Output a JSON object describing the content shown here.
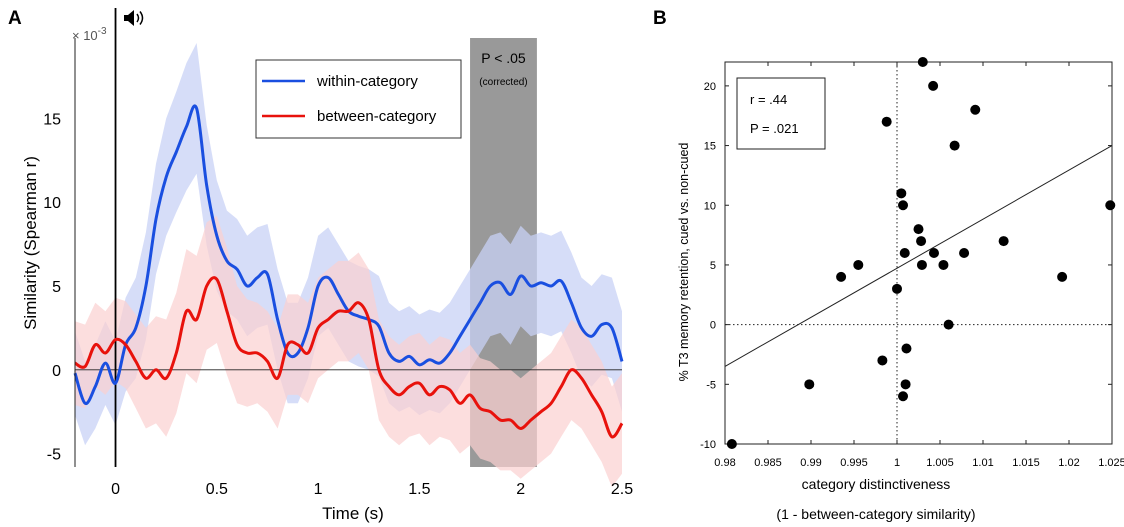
{
  "panel_a": {
    "panel_label": "A",
    "exponent_label": "× 10",
    "exponent_power": "-3",
    "sound_icon": "speaker-icon",
    "significance_label": "P < .05",
    "significance_sublabel": "(corrected)",
    "significance_window": [
      1.75,
      2.08
    ]
  },
  "panel_b": {
    "panel_label": "B",
    "stat_r": "r = .44",
    "stat_p": "P = .021",
    "xlabel_line2": "(1 - between-category similarity)"
  },
  "chart_data": [
    {
      "type": "line",
      "xlabel": "Time (s)",
      "ylabel": "Similarity (Spearman r)",
      "xlim": [
        -0.2,
        2.5
      ],
      "ylim": [
        -5.8,
        19.8
      ],
      "xticks": [
        0,
        0.5,
        1,
        1.5,
        2,
        2.5
      ],
      "xtick_labels": [
        "0",
        "0.5",
        "1",
        "1.5",
        "2",
        "2.5"
      ],
      "yticks": [
        -5,
        0,
        5,
        10,
        15
      ],
      "ytick_labels": [
        "-5",
        "0",
        "5",
        "10",
        "15"
      ],
      "legend_position": "top-right",
      "x": [
        -0.2,
        -0.15,
        -0.1,
        -0.05,
        0,
        0.05,
        0.1,
        0.15,
        0.2,
        0.25,
        0.3,
        0.35,
        0.4,
        0.45,
        0.5,
        0.55,
        0.6,
        0.65,
        0.7,
        0.75,
        0.8,
        0.85,
        0.9,
        0.95,
        1,
        1.05,
        1.1,
        1.15,
        1.2,
        1.25,
        1.3,
        1.35,
        1.4,
        1.45,
        1.5,
        1.55,
        1.6,
        1.65,
        1.7,
        1.75,
        1.8,
        1.85,
        1.9,
        1.95,
        2,
        2.05,
        2.1,
        2.15,
        2.2,
        2.25,
        2.3,
        2.35,
        2.4,
        2.45,
        2.5
      ],
      "series": [
        {
          "name": "within-category",
          "color": "#1a4fe0",
          "band_color": "#c8d2f5",
          "values": [
            -0.2,
            -2.0,
            -1.0,
            0.4,
            -0.8,
            1.5,
            2.5,
            5.0,
            9.0,
            11.5,
            13.0,
            14.5,
            15.6,
            11.0,
            8.0,
            6.5,
            6.0,
            5.0,
            5.5,
            5.7,
            3.0,
            1.0,
            1.0,
            2.5,
            5.0,
            5.5,
            4.5,
            3.5,
            3.2,
            3.0,
            2.6,
            1.0,
            0.5,
            0.8,
            0.3,
            0.6,
            0.4,
            1.0,
            2.0,
            3.0,
            4.0,
            5.0,
            5.2,
            4.5,
            5.6,
            5.0,
            5.2,
            5.0,
            5.3,
            4.0,
            2.5,
            2.0,
            2.7,
            2.5,
            0.5
          ],
          "band_halfwidth": [
            2.5,
            2.5,
            2.5,
            2.5,
            2.5,
            2.8,
            3.0,
            3.2,
            3.3,
            3.5,
            3.6,
            3.8,
            3.9,
            3.6,
            3.3,
            3.0,
            3.0,
            3.0,
            3.0,
            3.0,
            3.0,
            3.0,
            3.0,
            3.0,
            3.0,
            3.0,
            3.0,
            3.0,
            3.0,
            3.0,
            3.0,
            3.0,
            3.0,
            3.0,
            3.0,
            3.0,
            3.0,
            3.0,
            3.0,
            3.0,
            3.0,
            3.0,
            3.0,
            3.0,
            3.0,
            3.0,
            3.0,
            3.0,
            3.0,
            3.0,
            3.0,
            3.0,
            3.0,
            3.0,
            3.0
          ]
        },
        {
          "name": "between-category",
          "color": "#e8120c",
          "band_color": "#fbd0d0",
          "values": [
            0.4,
            0.2,
            1.5,
            1.0,
            1.8,
            1.5,
            0.5,
            -0.5,
            0.0,
            -0.5,
            1.0,
            3.5,
            3.0,
            5.0,
            5.4,
            3.5,
            1.5,
            1.0,
            1.0,
            0.5,
            -0.5,
            1.5,
            1.5,
            1.0,
            2.5,
            3.0,
            3.5,
            3.5,
            4.0,
            3.0,
            0.0,
            -1.0,
            -1.5,
            -1.0,
            -0.8,
            -1.5,
            -1.0,
            -1.2,
            -2.0,
            -1.5,
            -2.3,
            -2.5,
            -3.0,
            -3.0,
            -3.5,
            -3.0,
            -2.5,
            -2.0,
            -1.0,
            0.0,
            -0.5,
            -1.5,
            -2.5,
            -4.0,
            -3.2
          ],
          "band_halfwidth": [
            2.5,
            2.5,
            2.5,
            2.5,
            2.5,
            2.6,
            2.8,
            3.0,
            3.2,
            3.5,
            3.6,
            3.7,
            3.8,
            3.8,
            3.8,
            3.8,
            3.5,
            3.2,
            3.0,
            3.0,
            3.0,
            3.0,
            3.0,
            3.0,
            3.0,
            3.0,
            3.0,
            3.0,
            3.0,
            3.0,
            3.0,
            3.0,
            3.0,
            3.0,
            3.0,
            3.0,
            3.0,
            3.0,
            3.0,
            3.0,
            3.0,
            3.0,
            3.0,
            3.0,
            3.0,
            3.0,
            3.0,
            3.0,
            3.0,
            3.0,
            3.0,
            3.0,
            3.0,
            3.0,
            3.0
          ]
        }
      ]
    },
    {
      "type": "scatter",
      "xlabel": "category distinctiveness",
      "ylabel": "% T3 memory retention, cued vs. non-cued",
      "xlim": [
        0.98,
        1.025
      ],
      "ylim": [
        -10,
        22
      ],
      "xticks": [
        0.98,
        0.985,
        0.99,
        0.995,
        1,
        1.005,
        1.01,
        1.015,
        1.02,
        1.025
      ],
      "xtick_labels": [
        "0.98",
        "0.985",
        "0.99",
        "0.995",
        "1",
        "1.005",
        "1.01",
        "1.015",
        "1.02",
        "1.025"
      ],
      "yticks": [
        -10,
        -5,
        0,
        5,
        10,
        15,
        20
      ],
      "ytick_labels": [
        "-10",
        "-5",
        "0",
        "5",
        "10",
        "15",
        "20"
      ],
      "points": [
        {
          "x": 0.9808,
          "y": -10
        },
        {
          "x": 0.9898,
          "y": -5
        },
        {
          "x": 0.9935,
          "y": 4
        },
        {
          "x": 0.9955,
          "y": 5
        },
        {
          "x": 0.9983,
          "y": -3
        },
        {
          "x": 0.9988,
          "y": 17
        },
        {
          "x": 1.0,
          "y": 3
        },
        {
          "x": 1.0005,
          "y": 11
        },
        {
          "x": 1.0007,
          "y": 10
        },
        {
          "x": 1.0007,
          "y": -6
        },
        {
          "x": 1.0009,
          "y": 6
        },
        {
          "x": 1.001,
          "y": -5
        },
        {
          "x": 1.0011,
          "y": -2
        },
        {
          "x": 1.0025,
          "y": 8
        },
        {
          "x": 1.0028,
          "y": 7
        },
        {
          "x": 1.0029,
          "y": 5
        },
        {
          "x": 1.003,
          "y": 22
        },
        {
          "x": 1.0042,
          "y": 20
        },
        {
          "x": 1.0043,
          "y": 6
        },
        {
          "x": 1.0054,
          "y": 5
        },
        {
          "x": 1.006,
          "y": 0
        },
        {
          "x": 1.0067,
          "y": 15
        },
        {
          "x": 1.0078,
          "y": 6
        },
        {
          "x": 1.0091,
          "y": 18
        },
        {
          "x": 1.0124,
          "y": 7
        },
        {
          "x": 1.0192,
          "y": 4
        },
        {
          "x": 1.0248,
          "y": 10
        }
      ],
      "fit_line": {
        "x": [
          0.98,
          1.025
        ],
        "y": [
          -3.5,
          15
        ]
      },
      "reference_lines": {
        "x": 1,
        "y": 0
      }
    }
  ]
}
